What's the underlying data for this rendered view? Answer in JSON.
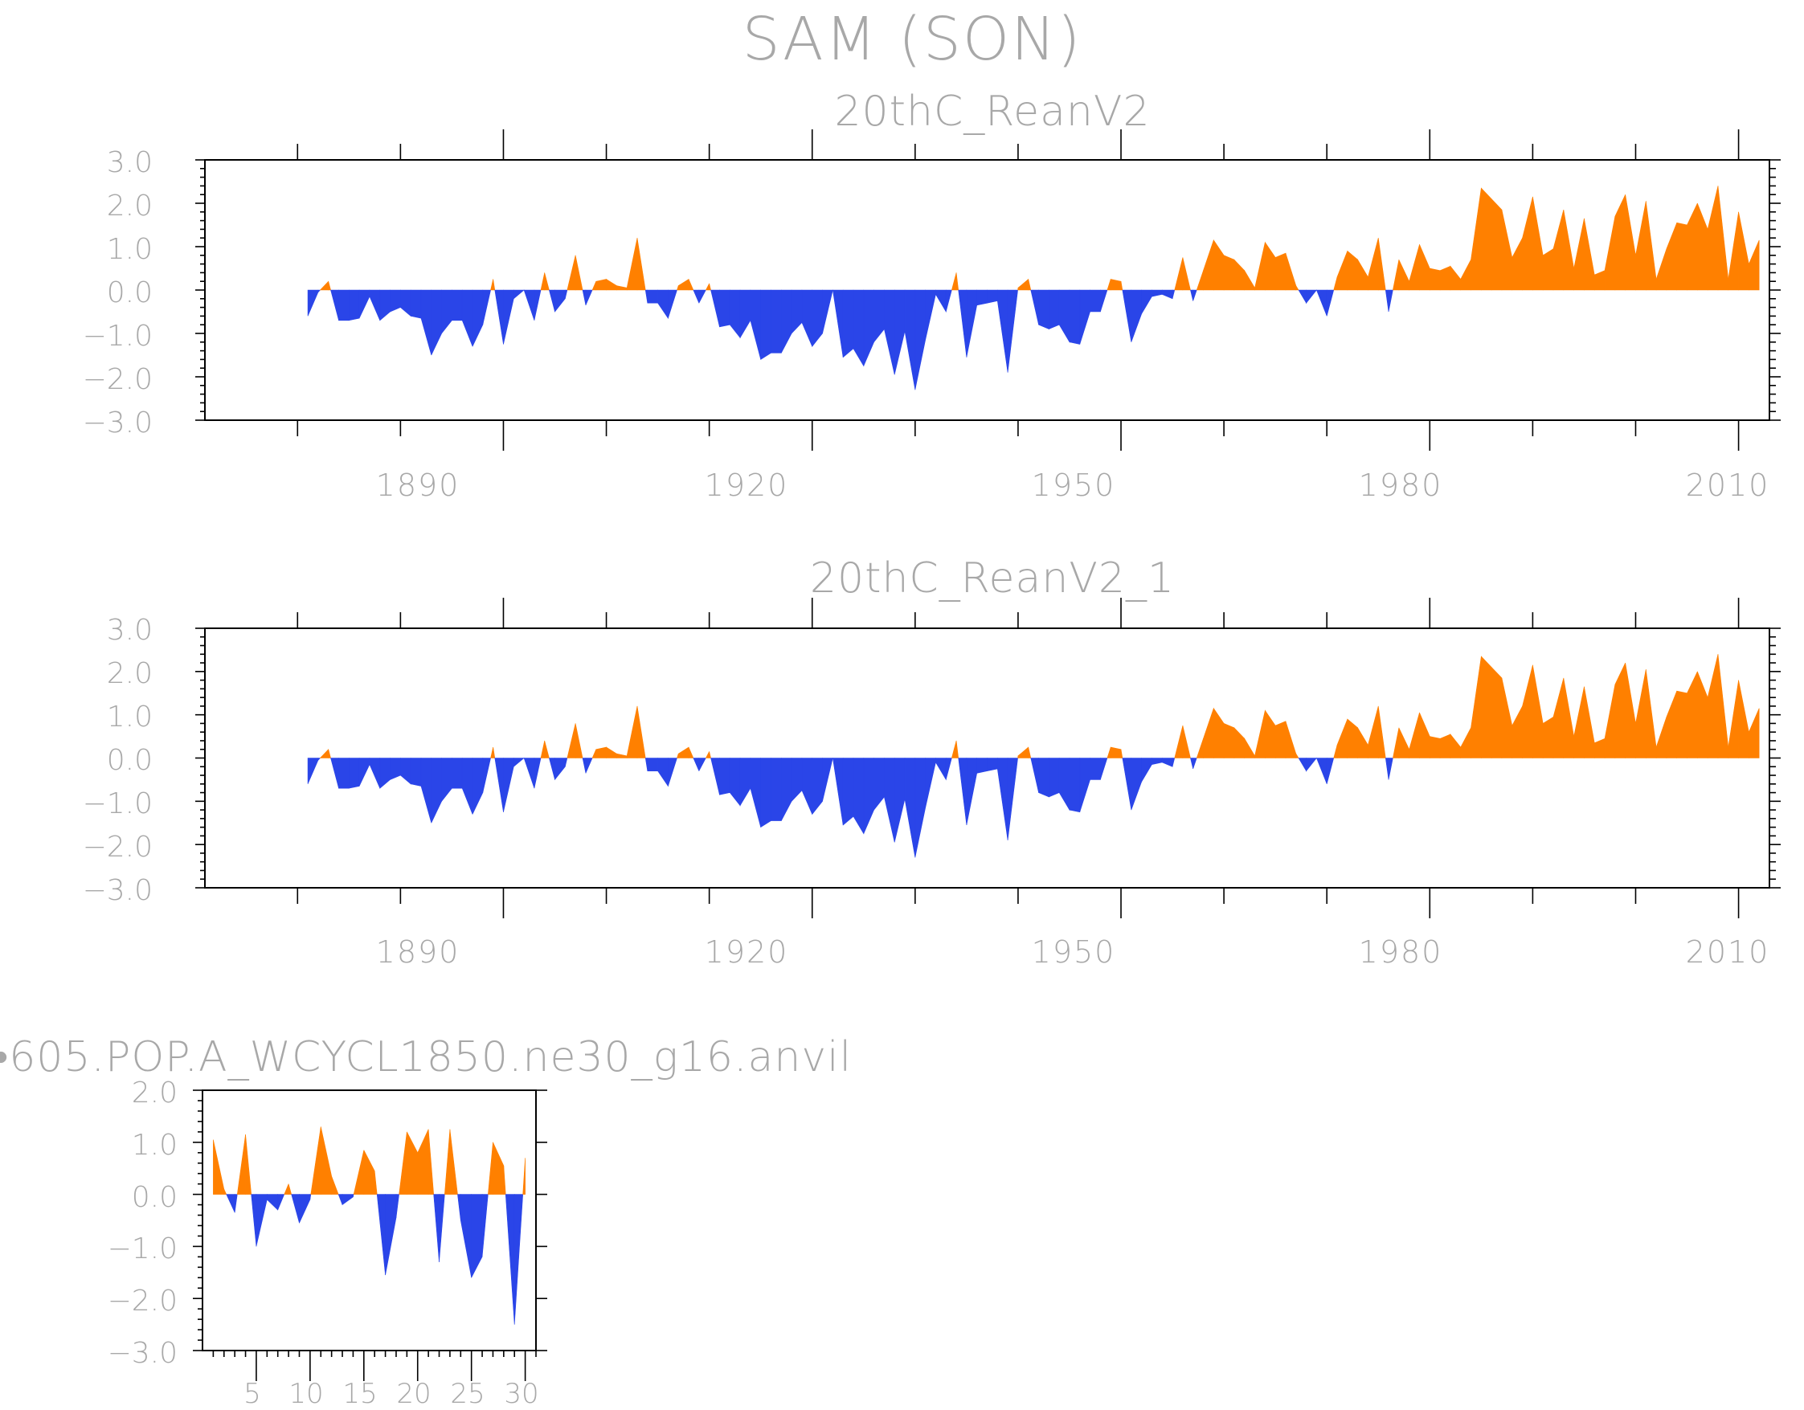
{
  "title": "SAM (SON)",
  "colors": {
    "positive": "#ff8000",
    "negative": "#2a45e8",
    "frame": "#000000",
    "text": "#a8a8a8"
  },
  "chart_data": [
    {
      "type": "area",
      "title": "20thC_ReanV2",
      "xlabel": "",
      "ylabel": "",
      "xlim": [
        1861,
        2013
      ],
      "ylim": [
        -3.0,
        3.0
      ],
      "yticks": [
        "3.0",
        "2.0",
        "1.0",
        "0.0",
        "−1.0",
        "−2.0",
        "−3.0"
      ],
      "xticks": [
        "1890",
        "1920",
        "1950",
        "1980",
        "2010"
      ],
      "x_start": 1871,
      "values": [
        -0.6,
        -0.05,
        0.2,
        -0.7,
        -0.7,
        -0.65,
        -0.15,
        -0.7,
        -0.5,
        -0.4,
        -0.6,
        -0.65,
        -1.5,
        -1.0,
        -0.7,
        -0.7,
        -1.3,
        -0.8,
        0.25,
        -1.25,
        -0.2,
        0.0,
        -0.7,
        0.4,
        -0.5,
        -0.2,
        0.8,
        -0.35,
        0.2,
        0.25,
        0.1,
        0.05,
        1.2,
        -0.3,
        -0.3,
        -0.65,
        0.1,
        0.25,
        -0.3,
        0.15,
        -0.85,
        -0.8,
        -1.1,
        -0.7,
        -1.6,
        -1.45,
        -1.45,
        -1.0,
        -0.75,
        -1.3,
        -1.0,
        0.0,
        -1.55,
        -1.35,
        -1.75,
        -1.2,
        -0.9,
        -1.95,
        -0.95,
        -2.3,
        -1.15,
        -0.1,
        -0.5,
        0.4,
        -1.55,
        -0.35,
        -0.3,
        -0.25,
        -1.9,
        0.05,
        0.25,
        -0.8,
        -0.9,
        -0.8,
        -1.2,
        -1.25,
        -0.5,
        -0.5,
        0.25,
        0.2,
        -1.2,
        -0.55,
        -0.15,
        -0.1,
        -0.2,
        0.75,
        -0.25,
        0.45,
        1.15,
        0.8,
        0.7,
        0.45,
        0.05,
        1.1,
        0.75,
        0.85,
        0.1,
        -0.3,
        0.0,
        -0.6,
        0.3,
        0.9,
        0.7,
        0.3,
        1.2,
        -0.5,
        0.7,
        0.2,
        1.05,
        0.5,
        0.45,
        0.55,
        0.25,
        0.7,
        2.35,
        2.1,
        1.85,
        0.75,
        1.2,
        2.15,
        0.8,
        0.95,
        1.85,
        0.5,
        1.65,
        0.35,
        0.45,
        1.7,
        2.2,
        0.8,
        2.05,
        0.25,
        0.95,
        1.55,
        1.5,
        2.0,
        1.4,
        2.4,
        0.25,
        1.8,
        0.6,
        1.15
      ]
    },
    {
      "type": "area",
      "title": "20thC_ReanV2_1",
      "xlabel": "",
      "ylabel": "",
      "xlim": [
        1861,
        2013
      ],
      "ylim": [
        -3.0,
        3.0
      ],
      "yticks": [
        "3.0",
        "2.0",
        "1.0",
        "0.0",
        "−1.0",
        "−2.0",
        "−3.0"
      ],
      "xticks": [
        "1890",
        "1920",
        "1950",
        "1980",
        "2010"
      ],
      "x_start": 1871,
      "values": [
        -0.6,
        -0.05,
        0.2,
        -0.7,
        -0.7,
        -0.65,
        -0.15,
        -0.7,
        -0.5,
        -0.4,
        -0.6,
        -0.65,
        -1.5,
        -1.0,
        -0.7,
        -0.7,
        -1.3,
        -0.8,
        0.25,
        -1.25,
        -0.2,
        0.0,
        -0.7,
        0.4,
        -0.5,
        -0.2,
        0.8,
        -0.35,
        0.2,
        0.25,
        0.1,
        0.05,
        1.2,
        -0.3,
        -0.3,
        -0.65,
        0.1,
        0.25,
        -0.3,
        0.15,
        -0.85,
        -0.8,
        -1.1,
        -0.7,
        -1.6,
        -1.45,
        -1.45,
        -1.0,
        -0.75,
        -1.3,
        -1.0,
        0.0,
        -1.55,
        -1.35,
        -1.75,
        -1.2,
        -0.9,
        -1.95,
        -0.95,
        -2.3,
        -1.15,
        -0.1,
        -0.5,
        0.4,
        -1.55,
        -0.35,
        -0.3,
        -0.25,
        -1.9,
        0.05,
        0.25,
        -0.8,
        -0.9,
        -0.8,
        -1.2,
        -1.25,
        -0.5,
        -0.5,
        0.25,
        0.2,
        -1.2,
        -0.55,
        -0.15,
        -0.1,
        -0.2,
        0.75,
        -0.25,
        0.45,
        1.15,
        0.8,
        0.7,
        0.45,
        0.05,
        1.1,
        0.75,
        0.85,
        0.1,
        -0.3,
        0.0,
        -0.6,
        0.3,
        0.9,
        0.7,
        0.3,
        1.2,
        -0.5,
        0.7,
        0.2,
        1.05,
        0.5,
        0.45,
        0.55,
        0.25,
        0.7,
        2.35,
        2.1,
        1.85,
        0.75,
        1.2,
        2.15,
        0.8,
        0.95,
        1.85,
        0.5,
        1.65,
        0.35,
        0.45,
        1.7,
        2.2,
        0.8,
        2.05,
        0.25,
        0.95,
        1.55,
        1.5,
        2.0,
        1.4,
        2.4,
        0.25,
        1.8,
        0.6,
        1.15
      ]
    },
    {
      "type": "area",
      "title": "•605.POP.A_WCYCL1850.ne30_g16.anvil",
      "xlabel": "",
      "ylabel": "",
      "xlim": [
        0,
        31
      ],
      "ylim": [
        -3.0,
        2.0
      ],
      "yticks": [
        "2.0",
        "1.0",
        "0.0",
        "−1.0",
        "−2.0",
        "−3.0"
      ],
      "xticks": [
        "5",
        "10",
        "15",
        "20",
        "25",
        "30"
      ],
      "x_start": 1,
      "values": [
        1.05,
        0.1,
        -0.35,
        1.15,
        -1.0,
        -0.1,
        -0.3,
        0.2,
        -0.55,
        -0.1,
        1.3,
        0.35,
        -0.2,
        -0.05,
        0.85,
        0.45,
        -1.55,
        -0.45,
        1.2,
        0.8,
        1.25,
        -1.3,
        1.25,
        -0.5,
        -1.6,
        -1.2,
        1.0,
        0.55,
        -2.5,
        0.7
      ]
    }
  ]
}
